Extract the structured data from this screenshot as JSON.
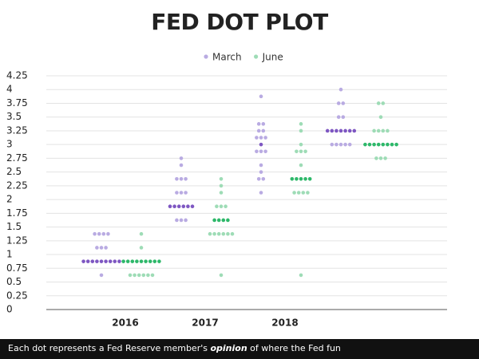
{
  "chart_data": {
    "type": "dot",
    "title": "FED DOT PLOT",
    "categories": [
      "2016",
      "2017",
      "2018",
      null
    ],
    "series": [
      {
        "name": "March",
        "color": "#b9abe2",
        "median_color": "#7e57c2",
        "medians": [
          0.875,
          1.875,
          3,
          3.25
        ],
        "values": [
          [
            1.375,
            1.375,
            1.375,
            1.375,
            1.125,
            1.125,
            1.125,
            0.875,
            0.875,
            0.875,
            0.875,
            0.875,
            0.875,
            0.875,
            0.875,
            0.875,
            0.625
          ],
          [
            2.75,
            2.625,
            2.375,
            2.375,
            2.375,
            2.125,
            2.125,
            2.125,
            1.875,
            1.875,
            1.875,
            1.875,
            1.875,
            1.875,
            1.625,
            1.625,
            1.625
          ],
          [
            3.875,
            3.375,
            3.375,
            3.25,
            3.25,
            3.125,
            3.125,
            3.125,
            3,
            2.875,
            2.875,
            2.875,
            2.625,
            2.5,
            2.375,
            2.375,
            2.125
          ],
          [
            4,
            3.75,
            3.75,
            3.5,
            3.5,
            3.25,
            3.25,
            3.25,
            3.25,
            3.25,
            3.25,
            3.25,
            3,
            3,
            3,
            3,
            3
          ]
        ]
      },
      {
        "name": "June",
        "color": "#9edcb6",
        "median_color": "#2eb86a",
        "medians": [
          0.875,
          1.625,
          2.375,
          3
        ],
        "values": [
          [
            1.375,
            1.125,
            0.875,
            0.875,
            0.875,
            0.875,
            0.875,
            0.875,
            0.875,
            0.875,
            0.875,
            0.625,
            0.625,
            0.625,
            0.625,
            0.625,
            0.625
          ],
          [
            2.375,
            2.25,
            2.125,
            1.875,
            1.875,
            1.875,
            1.625,
            1.625,
            1.625,
            1.625,
            1.375,
            1.375,
            1.375,
            1.375,
            1.375,
            1.375,
            0.625
          ],
          [
            3.375,
            3.25,
            3,
            2.875,
            2.875,
            2.875,
            2.625,
            2.375,
            2.375,
            2.375,
            2.375,
            2.375,
            2.125,
            2.125,
            2.125,
            2.125,
            0.625
          ],
          [
            3.75,
            3.75,
            3.5,
            3.25,
            3.25,
            3.25,
            3.25,
            3,
            3,
            3,
            3,
            3,
            3,
            3,
            3,
            2.75,
            2.75,
            2.75
          ]
        ]
      }
    ],
    "ylim": [
      0,
      4.25
    ],
    "yticks": [
      0,
      0.25,
      0.5,
      0.75,
      1,
      1.25,
      1.5,
      1.75,
      2,
      2.25,
      2.5,
      2.75,
      3,
      3.25,
      3.5,
      3.75,
      4,
      4.25
    ],
    "grid": true,
    "legend": "top",
    "note": {
      "before": "Each dot represents a Fed Reserve member's ",
      "emphasis": "opinion",
      "after": " of where the Fed fun"
    }
  }
}
